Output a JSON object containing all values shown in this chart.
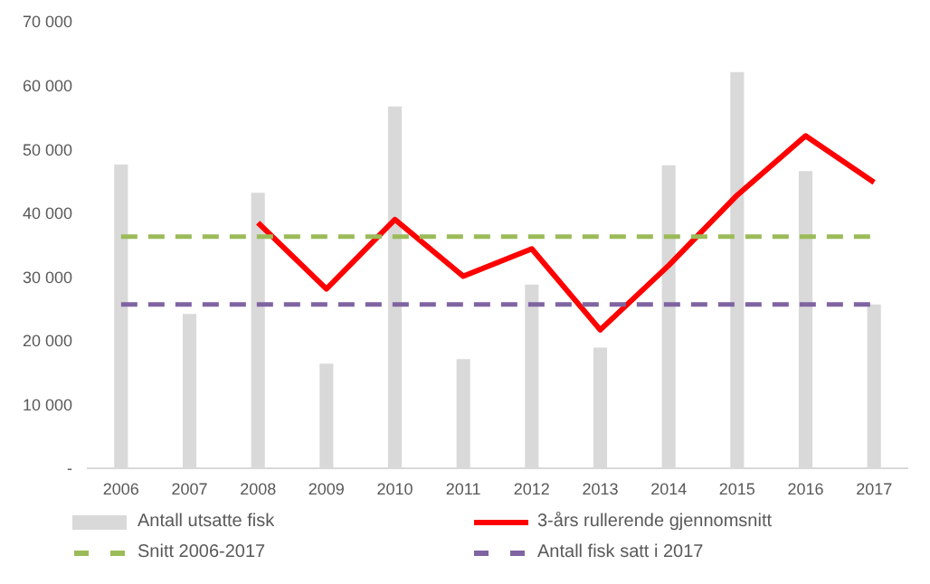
{
  "chart_data": {
    "type": "bar",
    "categories": [
      "2006",
      "2007",
      "2008",
      "2009",
      "2010",
      "2011",
      "2012",
      "2013",
      "2014",
      "2015",
      "2016",
      "2017"
    ],
    "series": [
      {
        "name": "Antall utsatte fisk",
        "color": "#d9d9d9",
        "values": [
          47600,
          24200,
          43200,
          16400,
          56700,
          17100,
          28800,
          18900,
          47500,
          62100,
          46600,
          25700
        ]
      },
      {
        "name": "3-års rullerende gjennomsnitt",
        "type": "line",
        "color": "#ff0000",
        "line_style": "solid",
        "values": [
          null,
          null,
          38500,
          28100,
          39000,
          30100,
          34400,
          21700,
          31800,
          42800,
          52100,
          44800
        ]
      },
      {
        "name": "Snitt 2006-2017",
        "type": "line",
        "color": "#9bbb59",
        "line_style": "dashed",
        "values": [
          36300,
          36300,
          36300,
          36300,
          36300,
          36300,
          36300,
          36300,
          36300,
          36300,
          36300,
          36300
        ]
      },
      {
        "name": "Antall fisk satt i 2017",
        "type": "line",
        "color": "#8064a2",
        "line_style": "dashed",
        "values": [
          25700,
          25700,
          25700,
          25700,
          25700,
          25700,
          25700,
          25700,
          25700,
          25700,
          25700,
          25700
        ]
      }
    ],
    "ylim": [
      0,
      70000
    ],
    "yticks": [
      {
        "value": 0,
        "label": "-"
      },
      {
        "value": 10000,
        "label": "10 000"
      },
      {
        "value": 20000,
        "label": "20 000"
      },
      {
        "value": 30000,
        "label": "30 000"
      },
      {
        "value": 40000,
        "label": "40 000"
      },
      {
        "value": 50000,
        "label": "50 000"
      },
      {
        "value": 60000,
        "label": "60 000"
      },
      {
        "value": 70000,
        "label": "70 000"
      }
    ],
    "grid": false,
    "legend": "bottom",
    "marker": "none"
  }
}
